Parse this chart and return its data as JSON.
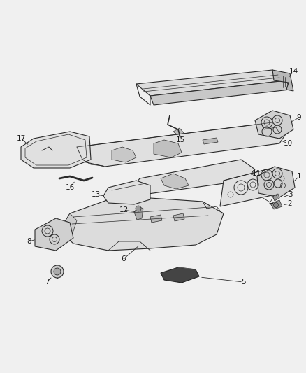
{
  "bg_color": "#f0f0f0",
  "line_color": "#2a2a2a",
  "label_color": "#1a1a1a",
  "label_fontsize": 7.5,
  "fig_width": 4.38,
  "fig_height": 5.33,
  "dpi": 100,
  "part_face": "#e8e8e8",
  "part_face2": "#d8d8d8",
  "part_face3": "#c8c8c8",
  "part_face_dark": "#555555"
}
